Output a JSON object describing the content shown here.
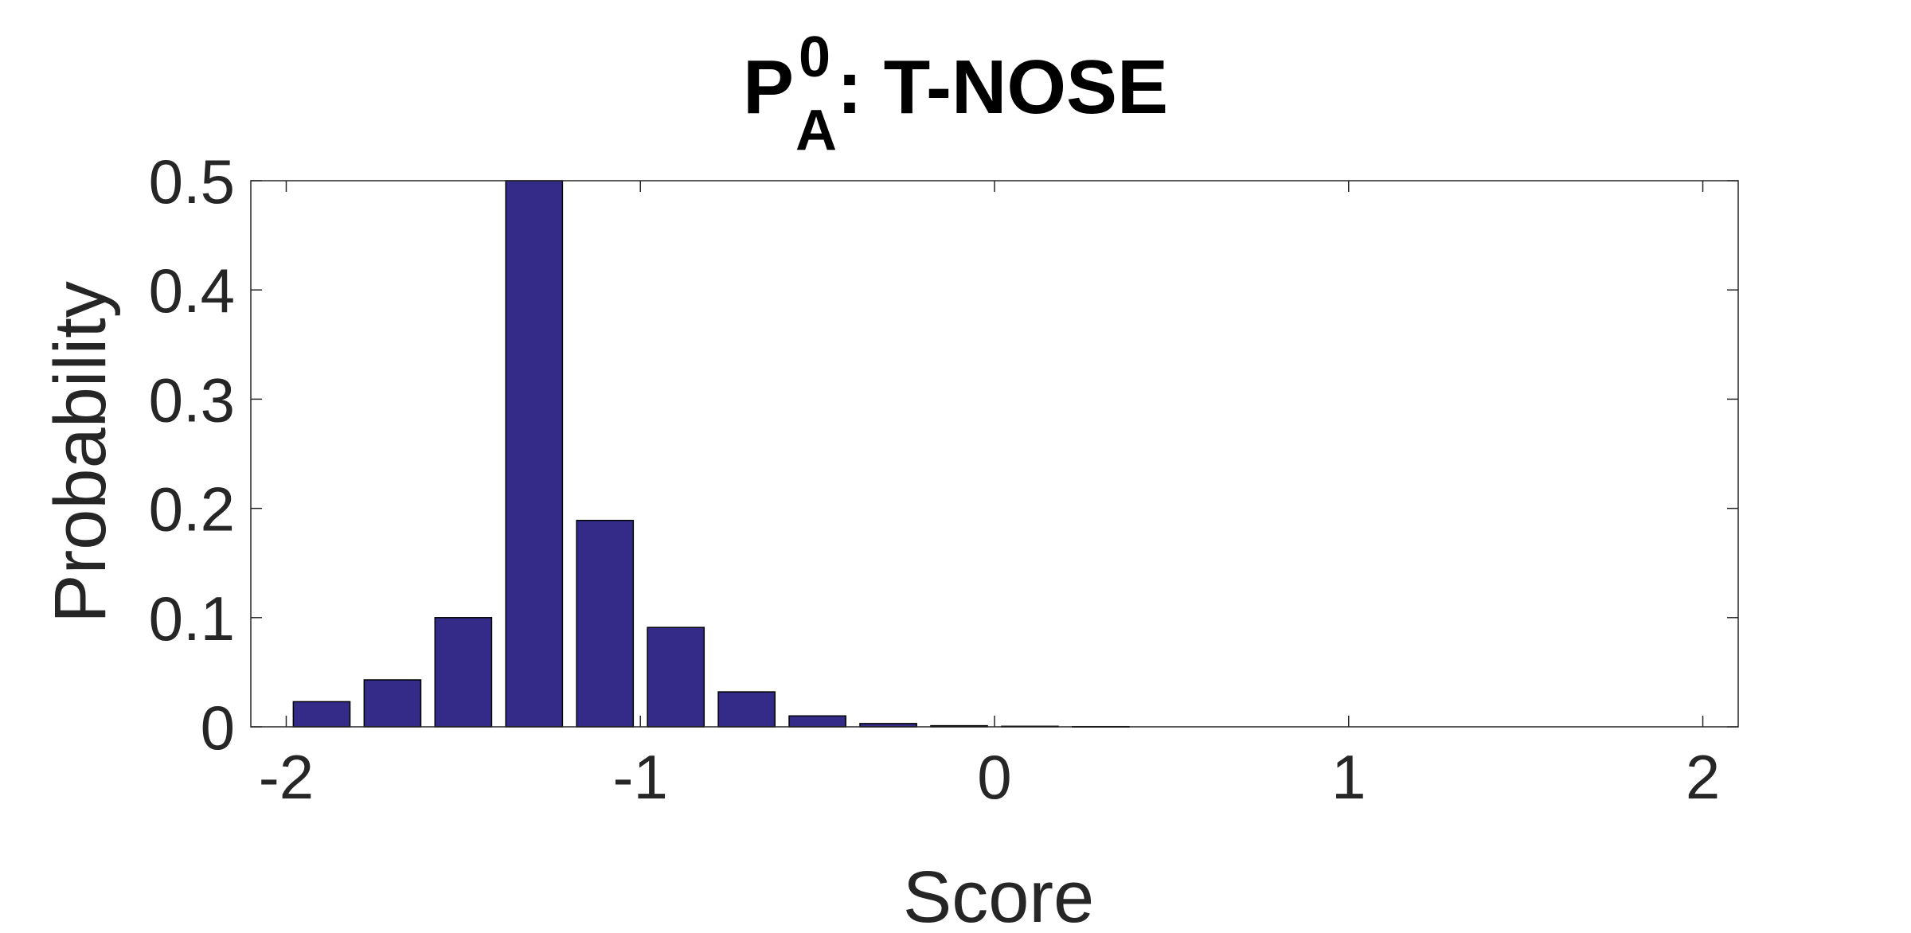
{
  "chart_data": {
    "type": "bar",
    "title": {
      "main": "P",
      "superscript": "0",
      "subscript": "A",
      "rest": ": T-NOSE"
    },
    "xlabel": "Score",
    "ylabel": "Probability",
    "xlim": [
      -2.1,
      2.1
    ],
    "ylim": [
      0,
      0.5
    ],
    "xticks": [
      -2,
      -1,
      0,
      1,
      2
    ],
    "xtick_labels": [
      "-2",
      "-1",
      "0",
      "1",
      "2"
    ],
    "yticks": [
      0,
      0.1,
      0.2,
      0.3,
      0.4,
      0.5
    ],
    "ytick_labels": [
      "0",
      "0.1",
      "0.2",
      "0.3",
      "0.4",
      "0.5"
    ],
    "bin_width": 0.2,
    "bar_width_fraction": 0.8,
    "x": [
      -1.9,
      -1.7,
      -1.5,
      -1.3,
      -1.1,
      -0.9,
      -0.7,
      -0.5,
      -0.3,
      -0.1,
      0.1,
      0.3
    ],
    "values": [
      0.023,
      0.043,
      0.1,
      0.5,
      0.189,
      0.091,
      0.032,
      0.01,
      0.003,
      0.001,
      0.0005,
      0.0002
    ],
    "grid": false,
    "bar_color": "#332b87",
    "bar_edge_color": "#000000",
    "axis_color": "#262626"
  }
}
